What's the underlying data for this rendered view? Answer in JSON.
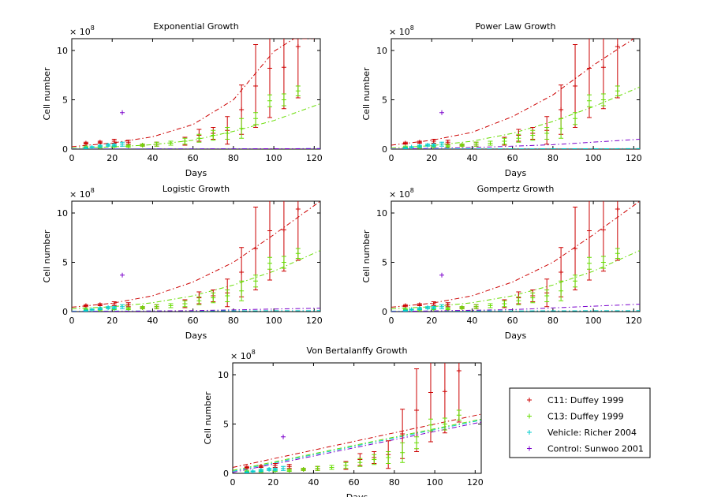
{
  "figure": {
    "background": "#ffffff"
  },
  "common": {
    "xlabel": "Days",
    "ylabel": "Cell number",
    "multiplier": "× 10",
    "exponent": "8",
    "xlim": [
      0,
      123
    ],
    "ylim": [
      0,
      11.2
    ],
    "xticks": [
      0,
      20,
      40,
      60,
      80,
      100,
      120
    ],
    "yticks": [
      0,
      5,
      10
    ]
  },
  "colors": {
    "c11": "#cc0000",
    "c13": "#66dd00",
    "vehicle": "#00cccc",
    "control": "#7a00cc"
  },
  "observed": {
    "c11": {
      "days": [
        7,
        14,
        21,
        28,
        35,
        42,
        49,
        56,
        63,
        70,
        77,
        84,
        91,
        98,
        105,
        112
      ],
      "values": [
        0.6,
        0.7,
        0.8,
        0.7,
        0.4,
        0.5,
        0.6,
        0.8,
        1.4,
        1.6,
        1.9,
        4.0,
        6.4,
        8.2,
        8.3,
        10.4
      ],
      "err": [
        0.1,
        0.1,
        0.2,
        0.2,
        0.1,
        0.2,
        0.2,
        0.4,
        0.6,
        0.6,
        1.4,
        2.5,
        4.2,
        5.0,
        4.2,
        5.2
      ]
    },
    "c13": {
      "days": [
        7,
        14,
        21,
        28,
        35,
        42,
        49,
        56,
        63,
        70,
        77,
        84,
        91,
        98,
        105,
        112
      ],
      "values": [
        0.2,
        0.2,
        0.3,
        0.3,
        0.4,
        0.5,
        0.6,
        0.8,
        1.1,
        1.4,
        1.6,
        2.1,
        3.1,
        4.9,
        5.0,
        5.9
      ],
      "err": [
        0.1,
        0.1,
        0.1,
        0.1,
        0.1,
        0.2,
        0.2,
        0.3,
        0.4,
        0.5,
        0.6,
        1.0,
        0.6,
        0.6,
        0.6,
        0.5
      ]
    },
    "vehicle": {
      "days": [
        7,
        10,
        14,
        18,
        21,
        25
      ],
      "values": [
        0.1,
        0.2,
        0.3,
        0.4,
        0.4,
        0.5
      ],
      "err": [
        0.05,
        0.05,
        0.1,
        0.1,
        0.1,
        0.2
      ]
    },
    "control": {
      "days": [
        25
      ],
      "values": [
        3.7
      ]
    }
  },
  "chart_data": [
    {
      "type": "scatter",
      "title": "Exponential Growth",
      "xlabel": "Days",
      "ylabel": "Cell number",
      "ylabel_scale": "× 10^8",
      "xlim": [
        0,
        123
      ],
      "ylim": [
        0,
        11.2
      ],
      "fits": [
        {
          "name": "C11",
          "x": [
            0,
            20,
            40,
            60,
            80,
            100,
            110,
            120
          ],
          "y": [
            0.25,
            0.62,
            1.25,
            2.5,
            5.0,
            9.9,
            11.2,
            11.2
          ]
        },
        {
          "name": "C13",
          "x": [
            0,
            20,
            40,
            60,
            80,
            100,
            123
          ],
          "y": [
            0.1,
            0.22,
            0.45,
            0.9,
            1.8,
            2.9,
            4.6
          ]
        },
        {
          "name": "Vehicle",
          "x": [
            0,
            123
          ],
          "y": [
            0.02,
            0.05
          ]
        },
        {
          "name": "Control",
          "x": [
            0,
            123
          ],
          "y": [
            0.0,
            0.05
          ]
        }
      ]
    },
    {
      "type": "scatter",
      "title": "Power Law Growth",
      "xlabel": "Days",
      "ylabel": "Cell number",
      "ylabel_scale": "× 10^8",
      "xlim": [
        0,
        123
      ],
      "ylim": [
        0,
        11.2
      ],
      "fits": [
        {
          "name": "C11",
          "x": [
            0,
            20,
            40,
            60,
            80,
            100,
            120
          ],
          "y": [
            0.4,
            0.9,
            1.7,
            3.3,
            5.5,
            8.5,
            11.2
          ]
        },
        {
          "name": "C13",
          "x": [
            0,
            20,
            40,
            60,
            80,
            100,
            123
          ],
          "y": [
            0.1,
            0.35,
            0.8,
            1.6,
            2.8,
            4.3,
            6.3
          ]
        },
        {
          "name": "Vehicle",
          "x": [
            0,
            123
          ],
          "y": [
            0.02,
            0.05
          ]
        },
        {
          "name": "Control",
          "x": [
            0,
            40,
            80,
            123
          ],
          "y": [
            0.0,
            0.15,
            0.45,
            1.0
          ]
        }
      ]
    },
    {
      "type": "scatter",
      "title": "Logistic Growth",
      "xlabel": "Days",
      "ylabel": "Cell number",
      "ylabel_scale": "× 10^8",
      "xlim": [
        0,
        123
      ],
      "ylim": [
        0,
        11.2
      ],
      "fits": [
        {
          "name": "C11",
          "x": [
            0,
            20,
            40,
            60,
            80,
            100,
            123
          ],
          "y": [
            0.45,
            0.85,
            1.6,
            3.0,
            5.0,
            7.8,
            11.2
          ]
        },
        {
          "name": "C13",
          "x": [
            0,
            20,
            40,
            60,
            80,
            100,
            123
          ],
          "y": [
            0.3,
            0.5,
            0.9,
            1.6,
            2.7,
            4.1,
            6.2
          ]
        },
        {
          "name": "Vehicle",
          "x": [
            0,
            123
          ],
          "y": [
            0.05,
            0.1
          ]
        },
        {
          "name": "Control",
          "x": [
            0,
            60,
            123
          ],
          "y": [
            0.0,
            0.1,
            0.35
          ]
        }
      ]
    },
    {
      "type": "scatter",
      "title": "Gompertz Growth",
      "xlabel": "Days",
      "ylabel": "Cell number",
      "ylabel_scale": "× 10^8",
      "xlim": [
        0,
        123
      ],
      "ylim": [
        0,
        11.2
      ],
      "fits": [
        {
          "name": "C11",
          "x": [
            0,
            20,
            40,
            60,
            80,
            100,
            123
          ],
          "y": [
            0.45,
            0.85,
            1.6,
            3.0,
            5.0,
            7.8,
            11.2
          ]
        },
        {
          "name": "C13",
          "x": [
            0,
            20,
            40,
            60,
            80,
            100,
            123
          ],
          "y": [
            0.3,
            0.5,
            0.9,
            1.6,
            2.7,
            4.1,
            6.2
          ]
        },
        {
          "name": "Vehicle",
          "x": [
            0,
            123
          ],
          "y": [
            0.05,
            0.1
          ]
        },
        {
          "name": "Control",
          "x": [
            0,
            60,
            123
          ],
          "y": [
            0.0,
            0.2,
            0.75
          ]
        }
      ]
    },
    {
      "type": "scatter",
      "title": "Von Bertalanffy Growth",
      "xlabel": "Days",
      "ylabel": "Cell number",
      "ylabel_scale": "× 10^8",
      "xlim": [
        0,
        123
      ],
      "ylim": [
        0,
        11.2
      ],
      "fits": [
        {
          "name": "C11",
          "x": [
            0,
            123
          ],
          "y": [
            0.6,
            6.0
          ]
        },
        {
          "name": "C13",
          "x": [
            0,
            123
          ],
          "y": [
            0.3,
            5.5
          ]
        },
        {
          "name": "Vehicle",
          "x": [
            0,
            123
          ],
          "y": [
            0.2,
            5.4
          ]
        },
        {
          "name": "Control",
          "x": [
            0,
            123
          ],
          "y": [
            0.1,
            5.2
          ]
        }
      ]
    }
  ],
  "legend": {
    "items": [
      {
        "key": "c11",
        "label": "C11: Duffey 1999"
      },
      {
        "key": "c13",
        "label": "C13: Duffey 1999"
      },
      {
        "key": "vehicle",
        "label": "Vehicle: Richer 2004"
      },
      {
        "key": "control",
        "label": "Control: Sunwoo 2001"
      }
    ]
  }
}
